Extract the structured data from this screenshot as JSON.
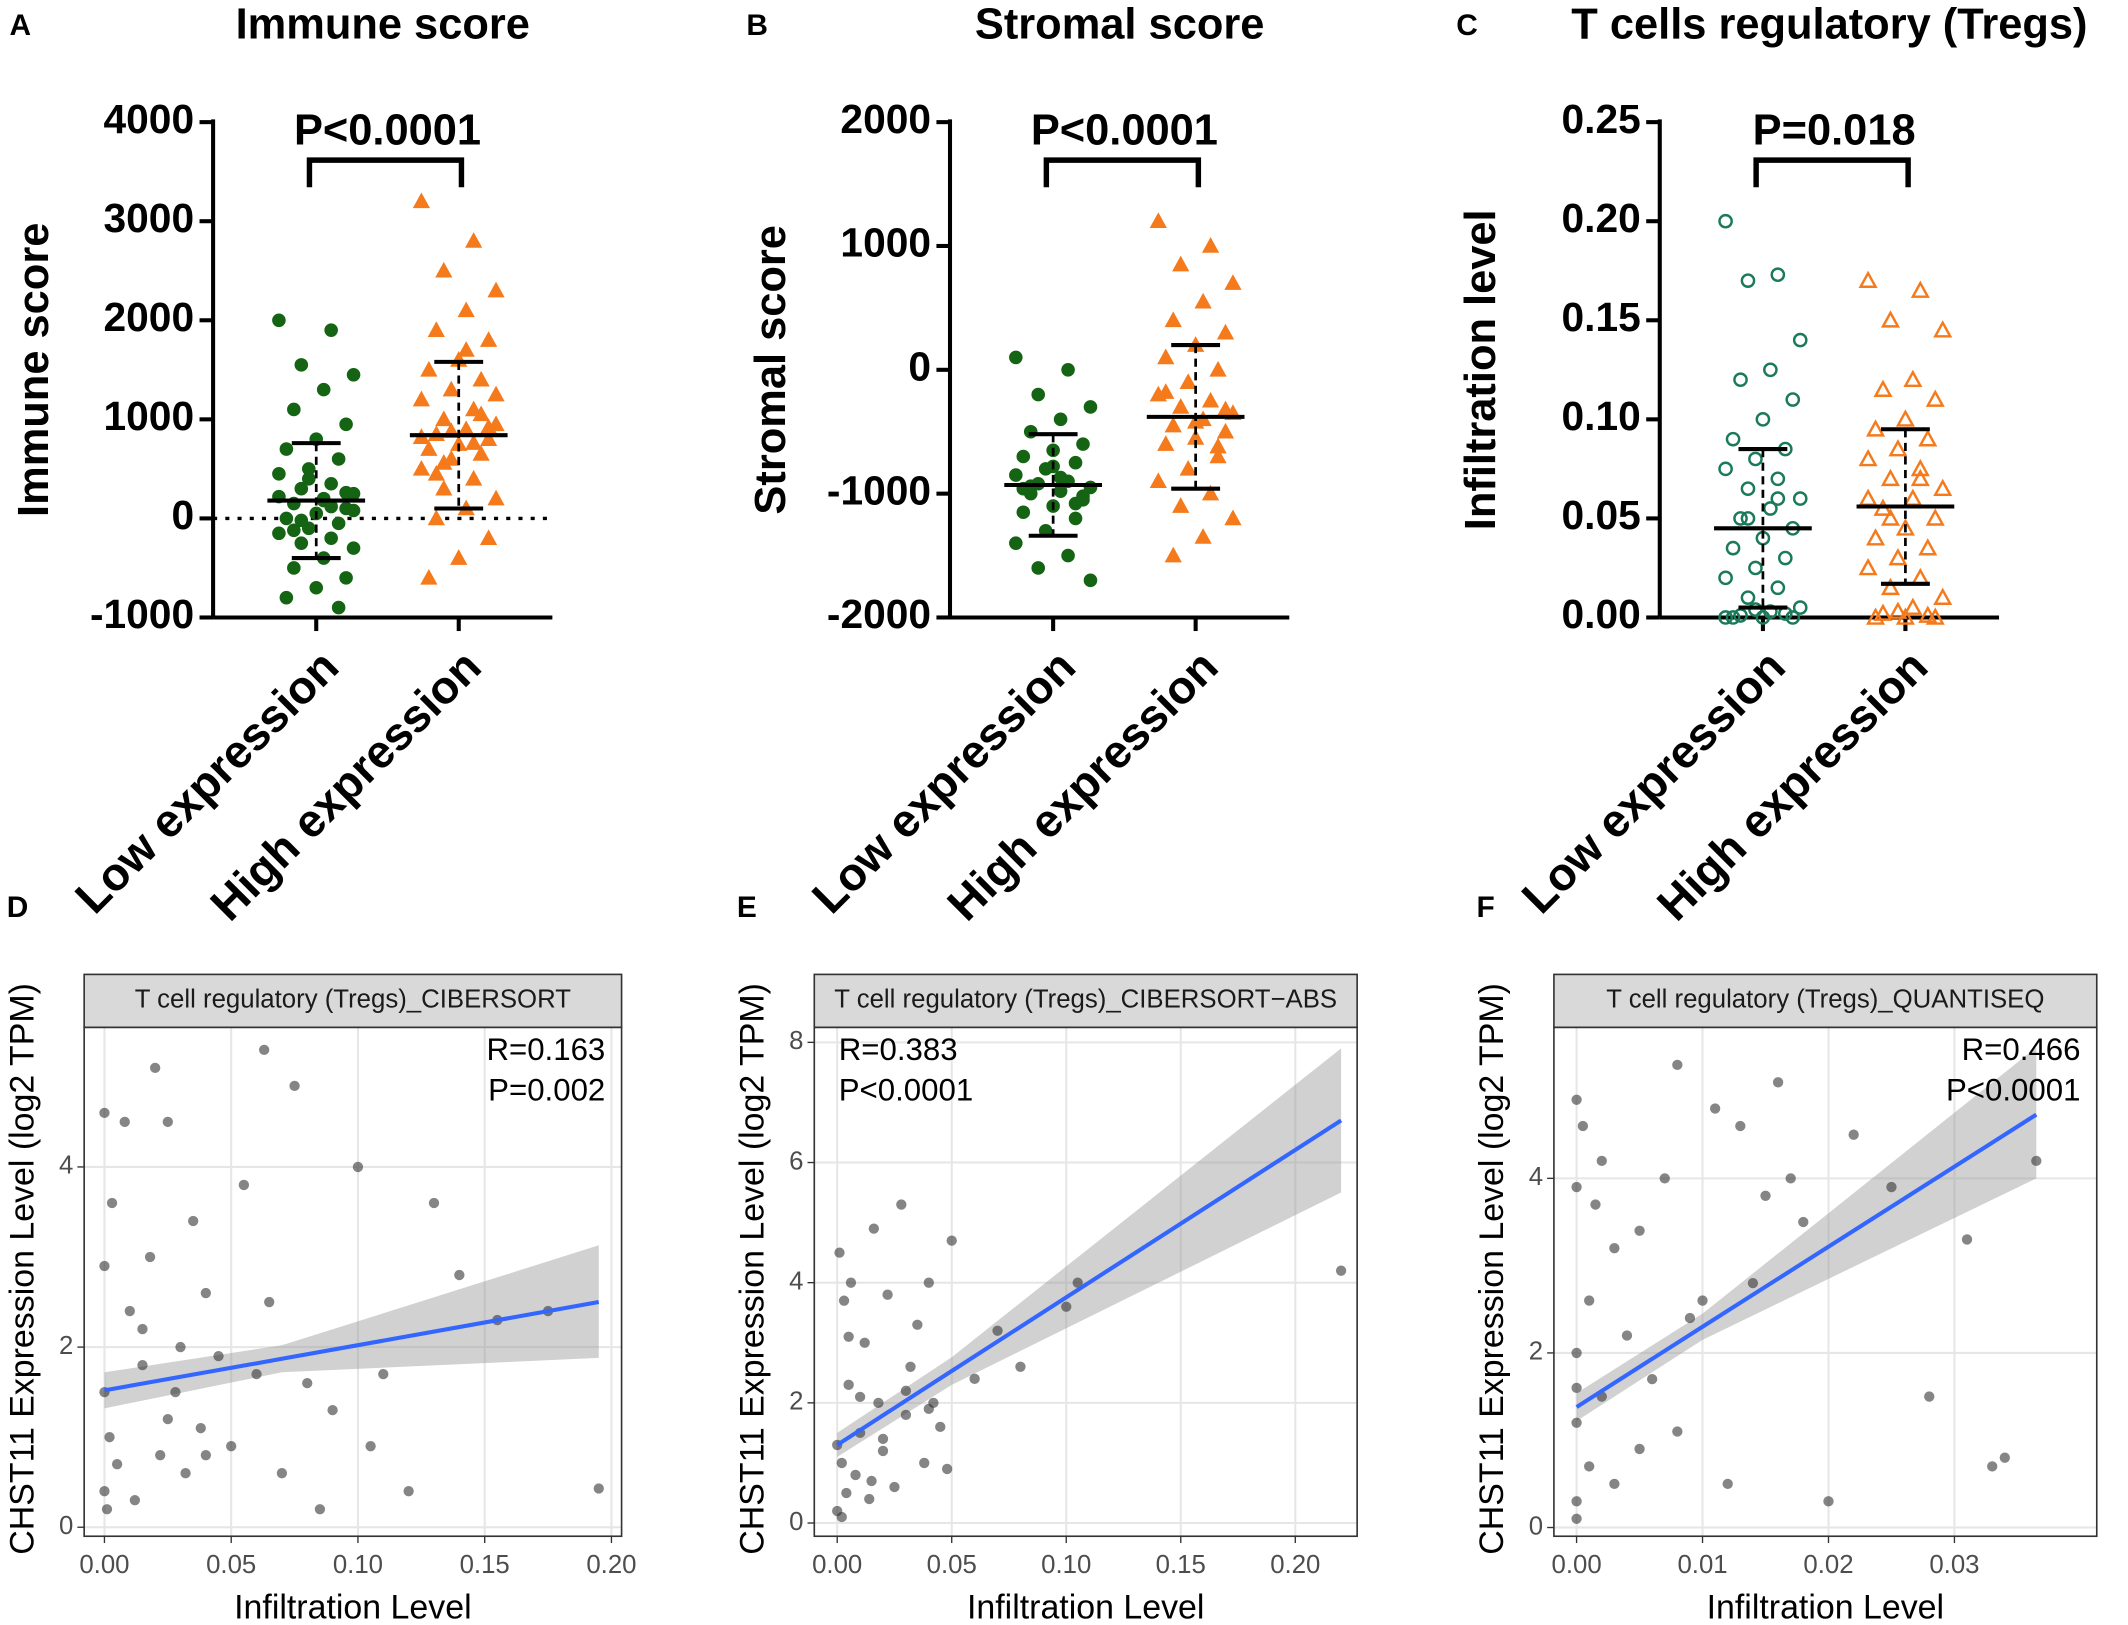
{
  "chart_data": [
    {
      "type": "dotplot",
      "panel": "A",
      "title": "Immune score",
      "ylabel": "Immune score",
      "annotation": "P<0.0001",
      "categories": [
        "Low expression",
        "High expression"
      ],
      "colors": [
        "#146414",
        "#f57a1c"
      ],
      "markers": [
        "circle",
        "triangle"
      ],
      "filled": true,
      "zero_line": true,
      "ylim": [
        -1000,
        4000
      ],
      "yticks": [
        -1000,
        0,
        1000,
        2000,
        3000,
        4000
      ],
      "mean": [
        180,
        840
      ],
      "sd": [
        580,
        740
      ],
      "values": [
        [
          2000,
          1900,
          1550,
          1450,
          1300,
          1100,
          950,
          800,
          700,
          600,
          500,
          450,
          350,
          300,
          250,
          200,
          150,
          100,
          50,
          0,
          -50,
          -100,
          -150,
          -200,
          -250,
          -300,
          -400,
          -500,
          -600,
          -700,
          -800,
          -900,
          400,
          220,
          120,
          -20,
          80,
          180,
          -120,
          260
        ],
        [
          3200,
          2800,
          2500,
          2300,
          2100,
          1900,
          1800,
          1600,
          1500,
          1400,
          1300,
          1200,
          1100,
          1000,
          950,
          900,
          850,
          800,
          750,
          700,
          650,
          600,
          500,
          400,
          300,
          200,
          100,
          0,
          -200,
          -400,
          -600,
          1050,
          880,
          820,
          760,
          560,
          1250,
          1700,
          450,
          920
        ]
      ]
    },
    {
      "type": "dotplot",
      "panel": "B",
      "title": "Stromal score",
      "ylabel": "Stromal score",
      "annotation": "P<0.0001",
      "categories": [
        "Low expression",
        "High expression"
      ],
      "colors": [
        "#146414",
        "#f57a1c"
      ],
      "markers": [
        "circle",
        "triangle"
      ],
      "filled": true,
      "zero_line": false,
      "ylim": [
        -2000,
        2000
      ],
      "yticks": [
        -2000,
        -1000,
        0,
        1000,
        2000
      ],
      "mean": [
        -930,
        -380
      ],
      "sd": [
        410,
        580
      ],
      "values": [
        [
          100,
          0,
          -200,
          -300,
          -400,
          -500,
          -600,
          -650,
          -700,
          -750,
          -800,
          -850,
          -900,
          -920,
          -950,
          -980,
          -1000,
          -1050,
          -1100,
          -1150,
          -1200,
          -1300,
          -1400,
          -1500,
          -1600,
          -1700,
          -870,
          -940,
          -1020,
          -780,
          -960,
          -1080
        ],
        [
          1200,
          1000,
          850,
          700,
          550,
          400,
          300,
          200,
          100,
          0,
          -100,
          -200,
          -250,
          -300,
          -350,
          -400,
          -450,
          -500,
          -550,
          -600,
          -700,
          -800,
          -900,
          -1000,
          -1100,
          -1200,
          -1350,
          -1500,
          -320,
          -420,
          -180,
          -620
        ]
      ]
    },
    {
      "type": "dotplot",
      "panel": "C",
      "title": "T cells regulatory (Tregs)",
      "ylabel": "Infiltration level",
      "annotation": "P=0.018",
      "categories": [
        "Low expression",
        "High expression"
      ],
      "colors": [
        "#1b7a5a",
        "#f57a1c"
      ],
      "markers": [
        "circle",
        "triangle"
      ],
      "filled": false,
      "zero_line": false,
      "ylim": [
        0,
        0.25
      ],
      "yticks": [
        {
          "value": 0,
          "label": "0.00"
        },
        {
          "value": 0.05,
          "label": "0.05"
        },
        {
          "value": 0.1,
          "label": "0.10"
        },
        {
          "value": 0.15,
          "label": "0.15"
        },
        {
          "value": 0.2,
          "label": "0.20"
        },
        {
          "value": 0.25,
          "label": "0.25"
        }
      ],
      "mean": [
        0.045,
        0.056
      ],
      "sd": [
        0.04,
        0.039
      ],
      "values": [
        [
          0.2,
          0.173,
          0.17,
          0.14,
          0.125,
          0.12,
          0.11,
          0.1,
          0.09,
          0.085,
          0.08,
          0.075,
          0.07,
          0.065,
          0.06,
          0.055,
          0.05,
          0.045,
          0.04,
          0.035,
          0.03,
          0.025,
          0.02,
          0.015,
          0.01,
          0.005,
          0.003,
          0.001,
          0,
          0,
          0,
          0.002,
          0.004,
          0,
          0.06,
          0.05
        ],
        [
          0.17,
          0.165,
          0.15,
          0.145,
          0.12,
          0.115,
          0.11,
          0.1,
          0.095,
          0.09,
          0.085,
          0.08,
          0.075,
          0.07,
          0.065,
          0.06,
          0.055,
          0.05,
          0.045,
          0.04,
          0.035,
          0.03,
          0.025,
          0.02,
          0.015,
          0.01,
          0.005,
          0.002,
          0,
          0,
          0,
          0.001,
          0.003,
          0.06,
          0.07,
          0.05
        ]
      ]
    },
    {
      "type": "scatter",
      "panel": "D",
      "strip": "T cell regulatory (Tregs)_CIBERSORT",
      "xlabel": "Infiltration Level",
      "ylabel": "CHST11 Expression Level (log2 TPM)",
      "stats": [
        "R=0.163",
        "P=0.002"
      ],
      "stats_position": "top-right",
      "color": "#333333",
      "fit_color": "#3366ff",
      "xlim": [
        -0.008,
        0.204
      ],
      "xticks": [
        {
          "value": 0,
          "label": "0.00"
        },
        {
          "value": 0.05,
          "label": "0.05"
        },
        {
          "value": 0.1,
          "label": "0.10"
        },
        {
          "value": 0.15,
          "label": "0.15"
        },
        {
          "value": 0.2,
          "label": "0.20"
        }
      ],
      "ylim": [
        -0.1,
        5.55
      ],
      "yticks": [
        0,
        2,
        4
      ],
      "x": [
        0.0,
        0.0,
        0.0,
        0.002,
        0.003,
        0.005,
        0.008,
        0.01,
        0.012,
        0.015,
        0.018,
        0.02,
        0.022,
        0.025,
        0.028,
        0.03,
        0.032,
        0.035,
        0.038,
        0.04,
        0.045,
        0.05,
        0.055,
        0.06,
        0.063,
        0.07,
        0.075,
        0.08,
        0.085,
        0.09,
        0.1,
        0.105,
        0.11,
        0.12,
        0.13,
        0.14,
        0.155,
        0.175,
        0.195,
        0.0,
        0.001,
        0.015,
        0.025,
        0.04,
        0.065
      ],
      "y": [
        4.6,
        0.4,
        2.9,
        1.0,
        3.6,
        0.7,
        4.5,
        2.4,
        0.3,
        1.8,
        3.0,
        5.1,
        0.8,
        4.5,
        1.5,
        2.0,
        0.6,
        3.4,
        1.1,
        2.6,
        1.9,
        0.9,
        3.8,
        1.7,
        5.3,
        0.6,
        4.9,
        1.6,
        0.2,
        1.3,
        4.0,
        0.9,
        1.7,
        0.4,
        3.6,
        2.8,
        2.3,
        2.4,
        0.43,
        1.5,
        0.2,
        2.2,
        1.2,
        0.8,
        2.5
      ],
      "fit": {
        "x": [
          0,
          0.07,
          0.195
        ],
        "y": [
          1.52,
          1.87,
          2.5
        ],
        "lower": [
          1.32,
          1.72,
          1.88
        ],
        "upper": [
          1.72,
          2.02,
          3.13
        ]
      }
    },
    {
      "type": "scatter",
      "panel": "E",
      "strip": "T cell regulatory (Tregs)_CIBERSORT−ABS",
      "xlabel": "Infiltration Level",
      "ylabel": "CHST11 Expression Level (log2 TPM)",
      "stats": [
        "R=0.383",
        "P<0.0001"
      ],
      "stats_position": "top-left",
      "color": "#333333",
      "fit_color": "#3366ff",
      "xlim": [
        -0.01,
        0.227
      ],
      "xticks": [
        {
          "value": 0,
          "label": "0.00"
        },
        {
          "value": 0.05,
          "label": "0.05"
        },
        {
          "value": 0.1,
          "label": "0.10"
        },
        {
          "value": 0.15,
          "label": "0.15"
        },
        {
          "value": 0.2,
          "label": "0.20"
        }
      ],
      "ylim": [
        -0.22,
        8.25
      ],
      "yticks": [
        0,
        2,
        4,
        6,
        8
      ],
      "x": [
        0.0,
        0.001,
        0.002,
        0.003,
        0.004,
        0.005,
        0.006,
        0.008,
        0.01,
        0.012,
        0.014,
        0.016,
        0.018,
        0.02,
        0.022,
        0.025,
        0.028,
        0.03,
        0.032,
        0.035,
        0.038,
        0.04,
        0.042,
        0.045,
        0.048,
        0.05,
        0.06,
        0.07,
        0.08,
        0.1,
        0.105,
        0.22,
        0.0,
        0.002,
        0.005,
        0.01,
        0.015,
        0.02,
        0.03,
        0.04
      ],
      "y": [
        0.2,
        4.5,
        1.0,
        3.7,
        0.5,
        2.3,
        4.0,
        0.8,
        1.5,
        3.0,
        0.4,
        4.9,
        2.0,
        1.2,
        3.8,
        0.6,
        5.3,
        1.8,
        2.6,
        3.3,
        1.0,
        4.0,
        2.0,
        1.6,
        0.9,
        4.7,
        2.4,
        3.2,
        2.6,
        3.6,
        4.0,
        4.2,
        1.3,
        0.1,
        3.1,
        2.1,
        0.7,
        1.4,
        2.2,
        1.9
      ],
      "fit": {
        "x": [
          0,
          0.05,
          0.22
        ],
        "y": [
          1.3,
          2.53,
          6.7
        ],
        "lower": [
          1.1,
          2.3,
          5.5
        ],
        "upper": [
          1.5,
          2.76,
          7.9
        ]
      }
    },
    {
      "type": "scatter",
      "panel": "F",
      "strip": "T cell regulatory (Tregs)_QUANTISEQ",
      "xlabel": "Infiltration Level",
      "ylabel": "CHST11 Expression Level (log2 TPM)",
      "stats": [
        "R=0.466",
        "P<0.0001"
      ],
      "stats_position": "top-right",
      "color": "#333333",
      "fit_color": "#3366ff",
      "xlim": [
        -0.0018,
        0.0413
      ],
      "xticks": [
        {
          "value": 0,
          "label": "0.00"
        },
        {
          "value": 0.01,
          "label": "0.01"
        },
        {
          "value": 0.02,
          "label": "0.02"
        },
        {
          "value": 0.03,
          "label": "0.03"
        }
      ],
      "ylim": [
        -0.1,
        5.73
      ],
      "yticks": [
        0,
        2,
        4
      ],
      "x": [
        0.0,
        0.0,
        0.0,
        0.0,
        0.0,
        0.0005,
        0.001,
        0.001,
        0.0015,
        0.002,
        0.002,
        0.003,
        0.003,
        0.004,
        0.005,
        0.005,
        0.006,
        0.007,
        0.008,
        0.008,
        0.009,
        0.01,
        0.011,
        0.012,
        0.013,
        0.014,
        0.015,
        0.016,
        0.017,
        0.018,
        0.02,
        0.022,
        0.025,
        0.028,
        0.031,
        0.033,
        0.034,
        0.0365,
        0.0,
        0.0
      ],
      "y": [
        4.9,
        0.3,
        2.0,
        3.9,
        1.2,
        4.6,
        0.7,
        2.6,
        3.7,
        1.5,
        4.2,
        0.5,
        3.2,
        2.2,
        3.4,
        0.9,
        1.7,
        4.0,
        5.3,
        1.1,
        2.4,
        2.6,
        4.8,
        0.5,
        4.6,
        2.8,
        3.8,
        5.1,
        4.0,
        3.5,
        0.3,
        4.5,
        3.9,
        1.5,
        3.3,
        0.7,
        0.8,
        4.2,
        1.6,
        0.1
      ],
      "fit": {
        "x": [
          0,
          0.01,
          0.0365
        ],
        "y": [
          1.38,
          2.3,
          4.73
        ],
        "lower": [
          1.22,
          2.15,
          4.0
        ],
        "upper": [
          1.54,
          2.45,
          5.5
        ]
      }
    }
  ]
}
